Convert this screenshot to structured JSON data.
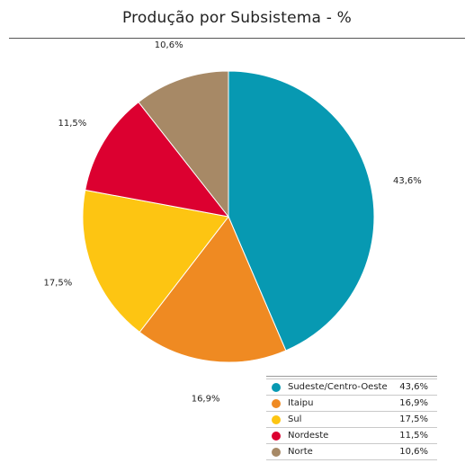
{
  "chart_data": {
    "type": "pie",
    "title": "Produção por Subsistema - %",
    "slices": [
      {
        "name": "Sudeste/Centro-Oeste",
        "value": 43.6,
        "label": "43,6%",
        "color": "#0799b2"
      },
      {
        "name": "Itaipu",
        "value": 16.9,
        "label": "16,9%",
        "color": "#ef8a22"
      },
      {
        "name": "Sul",
        "value": 17.5,
        "label": "17,5%",
        "color": "#fdc512"
      },
      {
        "name": "Nordeste",
        "value": 11.5,
        "label": "11,5%",
        "color": "#dc0030"
      },
      {
        "name": "Norte",
        "value": 10.6,
        "label": "10,6%",
        "color": "#a78966"
      }
    ],
    "start_angle": "12 o'clock",
    "direction": "clockwise",
    "legend_position": "bottom-right"
  }
}
